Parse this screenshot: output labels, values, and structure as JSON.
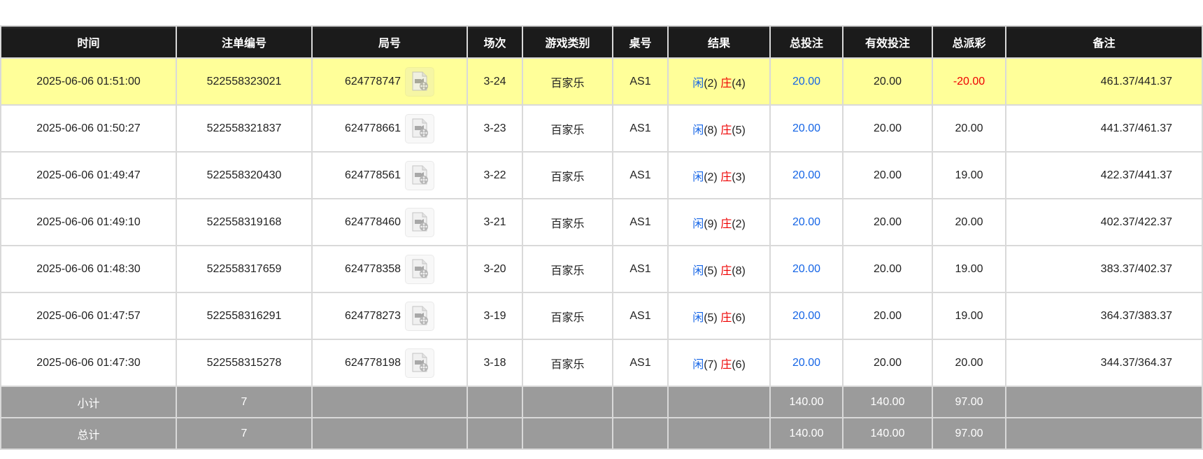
{
  "headers": [
    "时间",
    "注单编号",
    "局号",
    "场次",
    "游戏类别",
    "桌号",
    "结果",
    "总投注",
    "有效投注",
    "总派彩",
    "备注"
  ],
  "rows": [
    {
      "time": "2025-06-06 01:51:00",
      "bet_id": "522558323021",
      "round": "624778747",
      "session": "3-24",
      "game": "百家乐",
      "table": "AS1",
      "player_label": "闲",
      "player": "(2)",
      "banker_label": "庄",
      "banker": "(4)",
      "total_bet": "20.00",
      "valid_bet": "20.00",
      "payout": "-20.00",
      "note": "461.37/441.37",
      "highlight": true
    },
    {
      "time": "2025-06-06 01:50:27",
      "bet_id": "522558321837",
      "round": "624778661",
      "session": "3-23",
      "game": "百家乐",
      "table": "AS1",
      "player_label": "闲",
      "player": "(8)",
      "banker_label": "庄",
      "banker": "(5)",
      "total_bet": "20.00",
      "valid_bet": "20.00",
      "payout": "20.00",
      "note": "441.37/461.37"
    },
    {
      "time": "2025-06-06 01:49:47",
      "bet_id": "522558320430",
      "round": "624778561",
      "session": "3-22",
      "game": "百家乐",
      "table": "AS1",
      "player_label": "闲",
      "player": "(2)",
      "banker_label": "庄",
      "banker": "(3)",
      "total_bet": "20.00",
      "valid_bet": "20.00",
      "payout": "19.00",
      "note": "422.37/441.37"
    },
    {
      "time": "2025-06-06 01:49:10",
      "bet_id": "522558319168",
      "round": "624778460",
      "session": "3-21",
      "game": "百家乐",
      "table": "AS1",
      "player_label": "闲",
      "player": "(9)",
      "banker_label": "庄",
      "banker": "(2)",
      "total_bet": "20.00",
      "valid_bet": "20.00",
      "payout": "20.00",
      "note": "402.37/422.37"
    },
    {
      "time": "2025-06-06 01:48:30",
      "bet_id": "522558317659",
      "round": "624778358",
      "session": "3-20",
      "game": "百家乐",
      "table": "AS1",
      "player_label": "闲",
      "player": "(5)",
      "banker_label": "庄",
      "banker": "(8)",
      "total_bet": "20.00",
      "valid_bet": "20.00",
      "payout": "19.00",
      "note": "383.37/402.37"
    },
    {
      "time": "2025-06-06 01:47:57",
      "bet_id": "522558316291",
      "round": "624778273",
      "session": "3-19",
      "game": "百家乐",
      "table": "AS1",
      "player_label": "闲",
      "player": "(5)",
      "banker_label": "庄",
      "banker": "(6)",
      "total_bet": "20.00",
      "valid_bet": "20.00",
      "payout": "19.00",
      "note": "364.37/383.37"
    },
    {
      "time": "2025-06-06 01:47:30",
      "bet_id": "522558315278",
      "round": "624778198",
      "session": "3-18",
      "game": "百家乐",
      "table": "AS1",
      "player_label": "闲",
      "player": "(7)",
      "banker_label": "庄",
      "banker": "(6)",
      "total_bet": "20.00",
      "valid_bet": "20.00",
      "payout": "20.00",
      "note": "344.37/364.37"
    }
  ],
  "subtotal": {
    "label": "小计",
    "count": "7",
    "total_bet": "140.00",
    "valid_bet": "140.00",
    "payout": "97.00"
  },
  "total": {
    "label": "总计",
    "count": "7",
    "total_bet": "140.00",
    "valid_bet": "140.00",
    "payout": "97.00"
  },
  "colors": {
    "header": "#1b1b1b",
    "highlight": "#ffff99",
    "summary": "#9b9b9b",
    "player": "#1565e6",
    "banker": "#ee0000",
    "negative": "#ee0000"
  },
  "icons": {
    "replay": "video-file-icon"
  }
}
